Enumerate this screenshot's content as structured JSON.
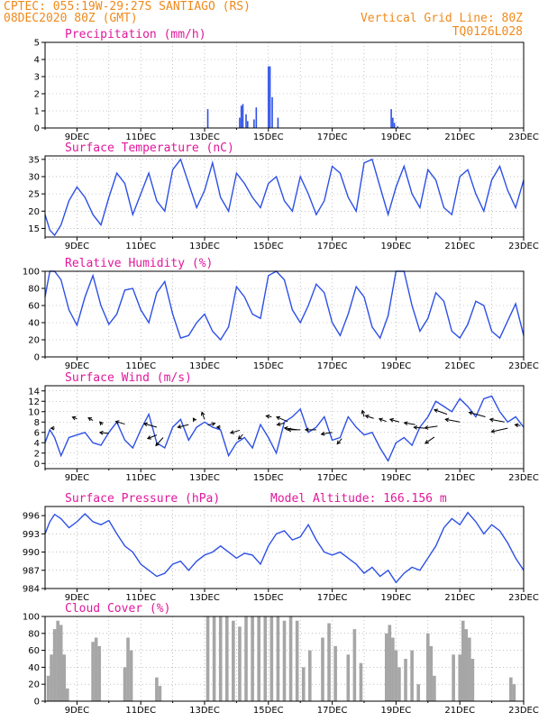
{
  "header": {
    "station": "CPTEC:   055:19W-29:27S  SANTIAGO (RS)",
    "run": "08DEC2020 80Z (GMT)",
    "vgrid": "Vertical Grid Line: 80Z",
    "code": "TQ0126L028"
  },
  "colors": {
    "header": "#f08a1c",
    "title": "#e0189c",
    "line": "#2d50e6",
    "cloud": "#a6a6a6"
  },
  "chart_data": [
    {
      "type": "bar",
      "title": "Precipitation (mm/h)",
      "xlabel": "",
      "ylabel": "",
      "x_ticks": [
        "9DEC",
        "11DEC",
        "13DEC",
        "15DEC",
        "17DEC",
        "19DEC",
        "21DEC",
        "23DEC"
      ],
      "xlim": [
        8.0,
        23.0
      ],
      "ylim": [
        0,
        5
      ],
      "yticks": [
        0,
        1,
        2,
        3,
        4,
        5
      ],
      "grid": true,
      "bars": [
        [
          13.1,
          1.1
        ],
        [
          14.1,
          0.6
        ],
        [
          14.15,
          1.3
        ],
        [
          14.2,
          1.4
        ],
        [
          14.3,
          0.8
        ],
        [
          14.35,
          0.4
        ],
        [
          14.55,
          0.5
        ],
        [
          14.62,
          1.2
        ],
        [
          15.0,
          3.6
        ],
        [
          15.05,
          3.6
        ],
        [
          15.12,
          1.8
        ],
        [
          15.3,
          0.6
        ],
        [
          18.85,
          1.1
        ],
        [
          18.9,
          0.6
        ],
        [
          18.95,
          0.3
        ],
        [
          19.05,
          0.1
        ]
      ]
    },
    {
      "type": "line",
      "title": "Surface Temperature (nC)",
      "xlabel": "",
      "ylabel": "",
      "x_ticks": [
        "9DEC",
        "11DEC",
        "13DEC",
        "15DEC",
        "17DEC",
        "19DEC",
        "21DEC",
        "23DEC"
      ],
      "xlim": [
        8.0,
        23.0
      ],
      "ylim": [
        12.5,
        36
      ],
      "yticks": [
        15,
        20,
        25,
        30,
        35
      ],
      "grid": true,
      "x": [
        8.0,
        8.15,
        8.3,
        8.5,
        8.75,
        9.0,
        9.25,
        9.5,
        9.75,
        10.0,
        10.25,
        10.5,
        10.75,
        11.0,
        11.25,
        11.5,
        11.75,
        12.0,
        12.25,
        12.5,
        12.75,
        13.0,
        13.25,
        13.5,
        13.75,
        14.0,
        14.25,
        14.5,
        14.75,
        15.0,
        15.25,
        15.5,
        15.75,
        16.0,
        16.25,
        16.5,
        16.75,
        17.0,
        17.25,
        17.5,
        17.75,
        18.0,
        18.25,
        18.5,
        18.75,
        19.0,
        19.25,
        19.5,
        19.75,
        20.0,
        20.25,
        20.5,
        20.75,
        21.0,
        21.25,
        21.5,
        21.75,
        22.0,
        22.25,
        22.5,
        22.75,
        23.0
      ],
      "values": [
        19,
        14.5,
        13,
        16,
        23,
        27,
        24,
        19,
        16,
        24,
        31,
        28,
        19,
        25,
        31,
        23,
        20,
        32,
        35,
        28,
        21,
        26,
        34,
        24,
        20,
        31,
        28,
        24,
        21,
        28,
        30,
        23,
        20,
        30,
        25,
        19,
        23,
        33,
        31,
        24,
        20,
        34,
        35,
        27,
        19,
        27,
        33,
        25,
        21,
        32,
        29,
        21,
        19,
        30,
        32,
        25,
        20,
        29,
        33,
        26,
        21,
        29
      ]
    },
    {
      "type": "line",
      "title": "Relative Humidity (%)",
      "xlabel": "",
      "ylabel": "",
      "x_ticks": [
        "9DEC",
        "11DEC",
        "13DEC",
        "15DEC",
        "17DEC",
        "19DEC",
        "21DEC",
        "23DEC"
      ],
      "xlim": [
        8.0,
        23.0
      ],
      "ylim": [
        0,
        100
      ],
      "yticks": [
        0,
        20,
        40,
        60,
        80,
        100
      ],
      "grid": true,
      "x": [
        8.0,
        8.15,
        8.3,
        8.5,
        8.75,
        9.0,
        9.25,
        9.5,
        9.75,
        10.0,
        10.25,
        10.5,
        10.75,
        11.0,
        11.25,
        11.5,
        11.75,
        12.0,
        12.25,
        12.5,
        12.75,
        13.0,
        13.25,
        13.5,
        13.75,
        14.0,
        14.25,
        14.5,
        14.75,
        15.0,
        15.25,
        15.5,
        15.75,
        16.0,
        16.25,
        16.5,
        16.75,
        17.0,
        17.25,
        17.5,
        17.75,
        18.0,
        18.25,
        18.5,
        18.75,
        19.0,
        19.25,
        19.5,
        19.75,
        20.0,
        20.25,
        20.5,
        20.75,
        21.0,
        21.25,
        21.5,
        21.75,
        22.0,
        22.25,
        22.5,
        22.75,
        23.0
      ],
      "values": [
        70,
        100,
        100,
        90,
        55,
        37,
        70,
        95,
        60,
        38,
        50,
        78,
        80,
        55,
        40,
        75,
        88,
        50,
        22,
        25,
        40,
        50,
        30,
        20,
        35,
        82,
        70,
        50,
        45,
        95,
        100,
        90,
        55,
        40,
        60,
        85,
        75,
        40,
        25,
        50,
        82,
        70,
        35,
        22,
        48,
        100,
        100,
        60,
        30,
        45,
        75,
        65,
        30,
        22,
        38,
        65,
        60,
        30,
        22,
        42,
        62,
        25
      ]
    },
    {
      "type": "line",
      "title": "Surface Wind (m/s)",
      "xlabel": "",
      "ylabel": "",
      "x_ticks": [
        "9DEC",
        "11DEC",
        "13DEC",
        "15DEC",
        "17DEC",
        "19DEC",
        "21DEC",
        "23DEC"
      ],
      "xlim": [
        8.0,
        23.0
      ],
      "ylim": [
        -1,
        15
      ],
      "yticks": [
        0,
        2,
        4,
        6,
        8,
        10,
        12,
        14
      ],
      "grid": true,
      "x": [
        8.0,
        8.15,
        8.3,
        8.5,
        8.75,
        9.0,
        9.25,
        9.5,
        9.75,
        10.0,
        10.25,
        10.5,
        10.75,
        11.0,
        11.25,
        11.5,
        11.75,
        12.0,
        12.25,
        12.5,
        12.75,
        13.0,
        13.25,
        13.5,
        13.75,
        14.0,
        14.25,
        14.5,
        14.75,
        15.0,
        15.25,
        15.5,
        15.75,
        16.0,
        16.25,
        16.5,
        16.75,
        17.0,
        17.25,
        17.5,
        17.75,
        18.0,
        18.25,
        18.5,
        18.75,
        19.0,
        19.25,
        19.5,
        19.75,
        20.0,
        20.25,
        20.5,
        20.75,
        21.0,
        21.25,
        21.5,
        21.75,
        22.0,
        22.25,
        22.5,
        22.75,
        23.0
      ],
      "values": [
        4,
        6.5,
        5,
        1.5,
        5,
        5.5,
        6,
        4,
        3.5,
        6,
        8,
        4.5,
        3,
        6.5,
        9.5,
        4,
        3,
        7,
        8.5,
        4.5,
        7,
        8,
        7,
        6.5,
        1.5,
        4,
        5,
        3,
        7.5,
        5,
        2,
        8,
        9,
        10.5,
        6,
        7,
        9,
        4.5,
        5,
        9,
        7,
        5.5,
        6,
        3,
        0.5,
        4,
        5,
        3.5,
        7,
        9,
        12,
        11,
        10,
        12.5,
        11,
        9,
        12.5,
        13,
        10,
        8,
        9,
        7
      ]
    },
    {
      "type": "line",
      "title": "Surface Pressure (hPa)",
      "annotation": "Model Altitude: 166.156 m",
      "xlabel": "",
      "ylabel": "",
      "x_ticks": [
        "9DEC",
        "11DEC",
        "13DEC",
        "15DEC",
        "17DEC",
        "19DEC",
        "21DEC",
        "23DEC"
      ],
      "xlim": [
        8.0,
        23.0
      ],
      "ylim": [
        984,
        997.5
      ],
      "yticks": [
        984,
        987,
        990,
        993,
        996
      ],
      "grid": true,
      "x": [
        8.0,
        8.15,
        8.3,
        8.5,
        8.75,
        9.0,
        9.25,
        9.5,
        9.75,
        10.0,
        10.25,
        10.5,
        10.75,
        11.0,
        11.25,
        11.5,
        11.75,
        12.0,
        12.25,
        12.5,
        12.75,
        13.0,
        13.25,
        13.5,
        13.75,
        14.0,
        14.25,
        14.5,
        14.75,
        15.0,
        15.25,
        15.5,
        15.75,
        16.0,
        16.25,
        16.5,
        16.75,
        17.0,
        17.25,
        17.5,
        17.75,
        18.0,
        18.25,
        18.5,
        18.75,
        19.0,
        19.25,
        19.5,
        19.75,
        20.0,
        20.25,
        20.5,
        20.75,
        21.0,
        21.25,
        21.5,
        21.75,
        22.0,
        22.25,
        22.5,
        22.75,
        23.0
      ],
      "values": [
        993,
        995,
        996.2,
        995.5,
        994,
        995,
        996.3,
        995,
        994.5,
        995.2,
        993,
        991,
        990,
        988,
        987,
        986,
        986.5,
        988,
        988.5,
        987,
        988.5,
        989.5,
        990,
        991,
        990,
        989,
        989.8,
        989.5,
        988,
        991,
        993,
        993.5,
        992,
        992.5,
        994.5,
        992,
        990,
        989.5,
        990,
        989,
        988,
        986.5,
        987.5,
        986,
        987,
        985,
        986.5,
        987.5,
        987,
        989,
        991,
        994,
        995.5,
        994.5,
        996.5,
        995,
        993,
        994.5,
        993.5,
        991.5,
        989,
        987
      ]
    },
    {
      "type": "bar",
      "title": "Cloud Cover (%)",
      "xlabel": "",
      "ylabel": "",
      "x_ticks": [
        "9DEC",
        "11DEC",
        "13DEC",
        "15DEC",
        "17DEC",
        "19DEC",
        "21DEC",
        "23DEC"
      ],
      "xlim": [
        8.0,
        23.0
      ],
      "ylim": [
        0,
        100
      ],
      "yticks": [
        0,
        20,
        40,
        60,
        80,
        100
      ],
      "grid": true,
      "bars": [
        [
          8.1,
          30
        ],
        [
          8.2,
          55
        ],
        [
          8.3,
          85
        ],
        [
          8.4,
          95
        ],
        [
          8.5,
          90
        ],
        [
          8.6,
          55
        ],
        [
          8.7,
          15
        ],
        [
          9.5,
          70
        ],
        [
          9.6,
          75
        ],
        [
          9.7,
          65
        ],
        [
          10.5,
          40
        ],
        [
          10.6,
          75
        ],
        [
          10.7,
          60
        ],
        [
          11.5,
          28
        ],
        [
          11.6,
          18
        ],
        [
          13.1,
          100
        ],
        [
          13.3,
          100
        ],
        [
          13.5,
          100
        ],
        [
          13.7,
          100
        ],
        [
          13.9,
          95
        ],
        [
          14.1,
          88
        ],
        [
          14.3,
          100
        ],
        [
          14.5,
          100
        ],
        [
          14.7,
          100
        ],
        [
          14.9,
          100
        ],
        [
          15.1,
          100
        ],
        [
          15.3,
          100
        ],
        [
          15.5,
          95
        ],
        [
          15.7,
          100
        ],
        [
          15.9,
          95
        ],
        [
          16.1,
          40
        ],
        [
          16.3,
          60
        ],
        [
          16.7,
          75
        ],
        [
          16.9,
          92
        ],
        [
          17.1,
          65
        ],
        [
          17.5,
          55
        ],
        [
          17.7,
          85
        ],
        [
          17.9,
          45
        ],
        [
          18.7,
          80
        ],
        [
          18.8,
          90
        ],
        [
          18.9,
          75
        ],
        [
          19.0,
          60
        ],
        [
          19.1,
          40
        ],
        [
          19.3,
          50
        ],
        [
          19.5,
          60
        ],
        [
          19.7,
          20
        ],
        [
          20.0,
          80
        ],
        [
          20.1,
          65
        ],
        [
          20.2,
          30
        ],
        [
          20.8,
          55
        ],
        [
          21.0,
          55
        ],
        [
          21.1,
          95
        ],
        [
          21.2,
          85
        ],
        [
          21.3,
          75
        ],
        [
          21.4,
          50
        ],
        [
          22.6,
          28
        ],
        [
          22.7,
          20
        ]
      ]
    }
  ]
}
